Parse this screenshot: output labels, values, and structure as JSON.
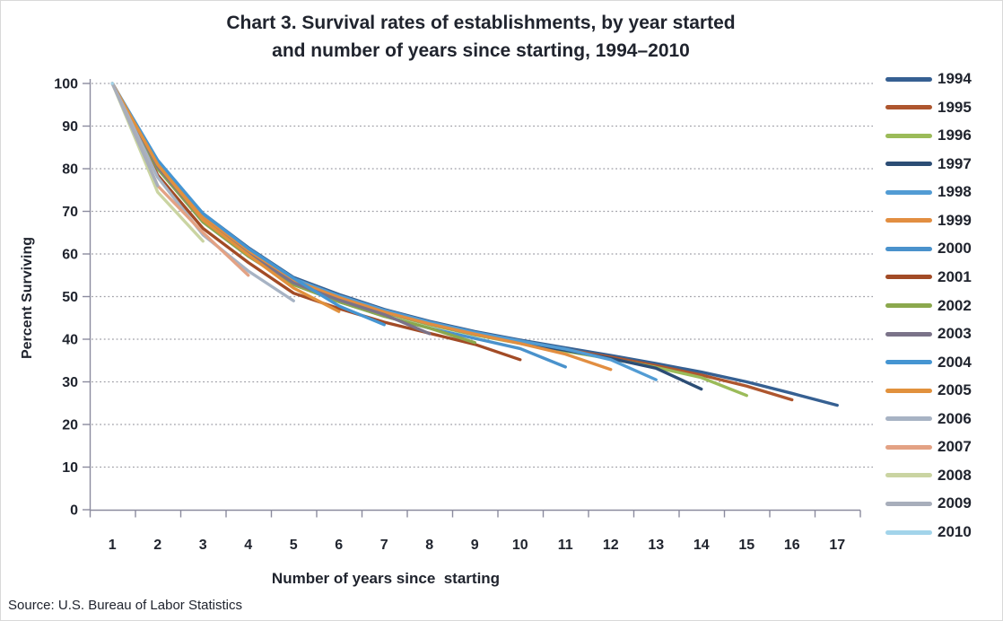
{
  "source": "Source: U.S. Bureau of Labor Statistics",
  "chart_data": {
    "type": "line",
    "title": "Chart 3. Survival rates of establishments, by year started and number of years since starting, 1994–2010",
    "title_line1": "Chart 3. Survival rates of establishments, by year started",
    "title_line2": "and number of years since starting, 1994–2010",
    "xlabel": "Number of years since  starting",
    "ylabel": "Percent Surviving",
    "categories": [
      1,
      2,
      3,
      4,
      5,
      6,
      7,
      8,
      9,
      10,
      11,
      12,
      13,
      14,
      15,
      16,
      17
    ],
    "y_ticks": [
      0,
      10,
      20,
      30,
      40,
      50,
      60,
      70,
      80,
      90,
      100
    ],
    "ylim": [
      0,
      100
    ],
    "grid": "horizontal-dotted",
    "legend_position": "right",
    "note": "Each series starts at 100% in year 1; series named by year the establishments started; x = number of years since starting",
    "series": [
      {
        "name": "1994",
        "color": "#366092",
        "values": [
          100,
          81.5,
          69.5,
          61.5,
          54.5,
          50.5,
          47.0,
          44.2,
          41.8,
          39.8,
          38.0,
          36.2,
          34.3,
          32.3,
          30.0,
          27.3,
          24.5
        ]
      },
      {
        "name": "1995",
        "color": "#AE562E",
        "values": [
          100,
          81.0,
          69.0,
          61.0,
          54.0,
          50.0,
          46.6,
          43.8,
          41.4,
          39.4,
          37.6,
          35.8,
          33.8,
          31.6,
          29.0,
          25.8
        ]
      },
      {
        "name": "1996",
        "color": "#9BBB59",
        "values": [
          100,
          80.5,
          68.5,
          60.5,
          53.5,
          49.6,
          46.2,
          43.4,
          41.0,
          39.0,
          37.2,
          35.4,
          33.4,
          31.0,
          26.8
        ]
      },
      {
        "name": "1997",
        "color": "#2C4D75",
        "values": [
          100,
          81.0,
          68.5,
          60.5,
          53.8,
          49.8,
          46.4,
          43.6,
          41.2,
          39.2,
          37.4,
          35.5,
          33.2,
          28.3
        ]
      },
      {
        "name": "1998",
        "color": "#529CD4",
        "values": [
          100,
          81.5,
          69.0,
          61.0,
          54.2,
          50.2,
          46.8,
          44.0,
          41.6,
          39.6,
          37.7,
          35.2,
          30.5
        ]
      },
      {
        "name": "1999",
        "color": "#E28E41",
        "values": [
          100,
          81.0,
          68.5,
          60.8,
          53.8,
          49.8,
          46.4,
          43.6,
          41.2,
          39.0,
          36.5,
          32.9
        ]
      },
      {
        "name": "2000",
        "color": "#4A92CC",
        "values": [
          100,
          80.0,
          67.5,
          59.5,
          52.8,
          48.8,
          45.4,
          42.6,
          40.2,
          37.8,
          33.5
        ]
      },
      {
        "name": "2001",
        "color": "#A24B26",
        "values": [
          100,
          78.5,
          66.0,
          58.0,
          50.8,
          47.2,
          44.0,
          41.4,
          38.8,
          35.2
        ]
      },
      {
        "name": "2002",
        "color": "#8BA84D",
        "values": [
          100,
          80.0,
          67.5,
          59.5,
          52.8,
          48.8,
          45.4,
          42.6,
          39.2
        ]
      },
      {
        "name": "2003",
        "color": "#7B7389",
        "values": [
          100,
          80.5,
          68.0,
          60.0,
          53.2,
          49.2,
          45.8,
          41.3
        ]
      },
      {
        "name": "2004",
        "color": "#4595D2",
        "values": [
          100,
          82.0,
          69.5,
          61.3,
          54.3,
          47.8,
          43.4
        ]
      },
      {
        "name": "2005",
        "color": "#E1913D",
        "values": [
          100,
          81.0,
          68.0,
          59.8,
          52.0,
          46.5
        ]
      },
      {
        "name": "2006",
        "color": "#A7B3C4",
        "values": [
          100,
          78.0,
          64.5,
          56.0,
          49.0
        ]
      },
      {
        "name": "2007",
        "color": "#E3A284",
        "values": [
          100,
          76.0,
          65.0,
          55.0
        ]
      },
      {
        "name": "2008",
        "color": "#CAD4A2",
        "values": [
          100,
          74.5,
          63.0
        ]
      },
      {
        "name": "2009",
        "color": "#A8AEBB",
        "values": [
          100,
          76.0
        ]
      },
      {
        "name": "2010",
        "color": "#A2D4EA",
        "values": [
          100
        ]
      }
    ]
  }
}
